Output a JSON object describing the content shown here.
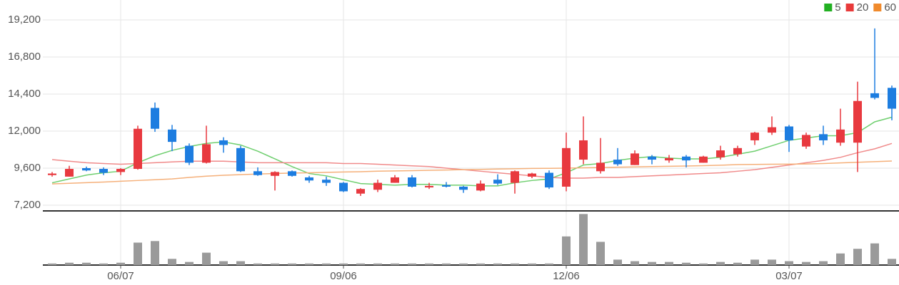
{
  "chart_data": {
    "type": "candlestick",
    "categories": [
      null,
      null,
      null,
      null,
      "06/07",
      null,
      null,
      null,
      null,
      null,
      null,
      null,
      null,
      null,
      null,
      null,
      null,
      "09/06",
      null,
      null,
      null,
      null,
      null,
      null,
      null,
      null,
      null,
      null,
      null,
      null,
      "12/06",
      null,
      null,
      null,
      null,
      null,
      null,
      null,
      null,
      null,
      null,
      null,
      null,
      "03/07",
      null,
      null,
      null,
      null,
      null,
      null
    ],
    "open": [
      9150,
      9050,
      9600,
      9550,
      9350,
      9550,
      13500,
      12100,
      11050,
      9950,
      11400,
      10900,
      9400,
      9100,
      9400,
      9000,
      8850,
      8650,
      7950,
      8200,
      8650,
      9000,
      8350,
      8500,
      8400,
      8150,
      8850,
      8650,
      9050,
      9300,
      8400,
      10150,
      9400,
      10150,
      9800,
      10350,
      10100,
      10350,
      9950,
      10300,
      10500,
      11400,
      11900,
      12300,
      11000,
      11800,
      11250,
      11250,
      14450,
      14800
    ],
    "high": [
      9350,
      9750,
      9700,
      9650,
      9600,
      12350,
      13850,
      12400,
      11200,
      12350,
      11600,
      11050,
      9650,
      9400,
      9450,
      9100,
      9050,
      8700,
      8300,
      8850,
      9150,
      9150,
      8650,
      8700,
      8450,
      8800,
      9200,
      9450,
      9300,
      9450,
      11900,
      12950,
      11550,
      10900,
      10750,
      10450,
      10450,
      10450,
      10400,
      11050,
      11050,
      11950,
      12950,
      12400,
      11900,
      12350,
      13450,
      15200,
      18650,
      14950
    ],
    "low": [
      9050,
      9050,
      9400,
      9150,
      9150,
      9500,
      11950,
      10700,
      9800,
      9900,
      10600,
      9350,
      9100,
      8150,
      9050,
      8650,
      8450,
      8050,
      7800,
      8050,
      8650,
      8350,
      8250,
      8350,
      8000,
      8100,
      8500,
      7950,
      8950,
      8250,
      8100,
      9850,
      9250,
      9750,
      9800,
      9850,
      9950,
      9650,
      9950,
      10150,
      10350,
      11100,
      11750,
      10650,
      10850,
      11100,
      11050,
      9350,
      14050,
      12700
    ],
    "close": [
      9250,
      9550,
      9450,
      9300,
      9550,
      12150,
      12150,
      11300,
      9950,
      11150,
      11100,
      9400,
      9150,
      9350,
      9100,
      8800,
      8650,
      8100,
      8250,
      8650,
      9000,
      8400,
      8450,
      8400,
      8200,
      8600,
      8600,
      9400,
      9250,
      8350,
      10900,
      11400,
      9950,
      9850,
      10550,
      10150,
      10250,
      10100,
      10350,
      10750,
      10900,
      11900,
      12250,
      11400,
      11750,
      11400,
      12100,
      13950,
      14150,
      13450
    ],
    "up_color": "#e8393f",
    "down_color": "#1d7de0",
    "ylim": [
      6830,
      20490
    ],
    "yticks": [
      {
        "value": 7200,
        "label": "7,200"
      },
      {
        "value": 9600,
        "label": "9,600"
      },
      {
        "value": 12000,
        "label": "12,000"
      },
      {
        "value": 14400,
        "label": "14,400"
      },
      {
        "value": 16800,
        "label": "16,800"
      },
      {
        "value": 19200,
        "label": "19,200"
      }
    ],
    "grid": true,
    "legend": "top-right",
    "series": [
      {
        "name": "5",
        "color": "#22b022",
        "line_color": "#6fcf6f",
        "values": [
          8650,
          8900,
          9150,
          9300,
          9400,
          9950,
          10400,
          10750,
          11000,
          11200,
          11300,
          11100,
          10700,
          10200,
          9700,
          9250,
          9100,
          8850,
          8600,
          8550,
          8500,
          8550,
          8550,
          8500,
          8500,
          8450,
          8450,
          8650,
          8800,
          8900,
          9300,
          9800,
          9900,
          10100,
          10250,
          10350,
          10250,
          10200,
          10200,
          10300,
          10500,
          10700,
          11050,
          11400,
          11550,
          11700,
          11700,
          11900,
          12600,
          12900
        ]
      },
      {
        "name": "20",
        "color": "#e83a3a",
        "line_color": "#f08a8a",
        "values": [
          10150,
          10050,
          9950,
          9900,
          9850,
          9900,
          9950,
          10000,
          10050,
          10050,
          10050,
          10000,
          9950,
          9950,
          9950,
          9950,
          9950,
          9900,
          9900,
          9850,
          9800,
          9750,
          9700,
          9600,
          9500,
          9400,
          9300,
          9200,
          9100,
          9000,
          8950,
          8950,
          9000,
          9000,
          9050,
          9100,
          9150,
          9200,
          9250,
          9300,
          9400,
          9500,
          9650,
          9800,
          9950,
          10100,
          10300,
          10600,
          10850,
          11200
        ]
      },
      {
        "name": "60",
        "color": "#f08a2c",
        "line_color": "#f5b07a",
        "values": [
          8580,
          8620,
          8660,
          8700,
          8750,
          8800,
          8850,
          8900,
          9000,
          9080,
          9140,
          9180,
          9220,
          9250,
          9280,
          9300,
          9330,
          9350,
          9370,
          9400,
          9420,
          9440,
          9460,
          9480,
          9500,
          9520,
          9540,
          9560,
          9580,
          9590,
          9600,
          9620,
          9640,
          9660,
          9680,
          9700,
          9720,
          9740,
          9760,
          9790,
          9830,
          9840,
          9850,
          9860,
          9870,
          9900,
          9940,
          9980,
          10020,
          10060
        ]
      }
    ],
    "volume": {
      "color": "#9a9a9a",
      "ylim": [
        0,
        70
      ],
      "values": [
        2,
        3,
        3,
        2,
        3,
        29,
        31,
        8,
        4,
        16,
        5,
        5,
        2,
        2,
        2,
        2,
        2,
        2,
        2,
        2,
        2,
        2,
        2,
        2,
        2,
        2,
        2,
        2,
        2,
        2,
        37,
        66,
        30,
        7,
        5,
        4,
        4,
        3,
        2,
        4,
        3,
        7,
        7,
        5,
        4,
        5,
        15,
        21,
        28,
        8
      ]
    }
  }
}
